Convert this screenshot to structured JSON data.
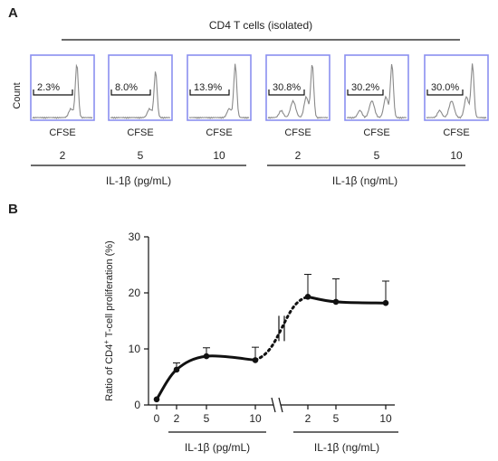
{
  "panel_a": {
    "letter": "A",
    "header": "CD4 T cells (isolated)",
    "y_axis_label": "Count",
    "x_axis_label": "CFSE",
    "histograms": [
      {
        "percent": "2.3%",
        "dose": "2"
      },
      {
        "percent": "8.0%",
        "dose": "5"
      },
      {
        "percent": "13.9%",
        "dose": "10"
      },
      {
        "percent": "30.8%",
        "dose": "2"
      },
      {
        "percent": "30.2%",
        "dose": "5"
      },
      {
        "percent": "30.0%",
        "dose": "10"
      }
    ],
    "group_labels": [
      "IL-1β (pg/mL)",
      "IL-1β (ng/mL)"
    ],
    "frame_color": "#8a8ff0"
  },
  "panel_b": {
    "letter": "B",
    "ylabel_prefix": "Ratio of CD4",
    "ylabel_sup": "+",
    "ylabel_suffix": " T-cell proliferation (%)",
    "group_labels": [
      "IL-1β (pg/mL)",
      "IL-1β (ng/mL)"
    ]
  },
  "chart_data": {
    "type": "line",
    "ylim": [
      0,
      30
    ],
    "yticks": [
      0,
      10,
      20,
      30
    ],
    "segments": [
      {
        "group": "IL-1β (pg/mL)",
        "x_labels": [
          "0",
          "2",
          "5",
          "10"
        ],
        "values": [
          1.0,
          6.3,
          8.7,
          8.0
        ],
        "errors": [
          0,
          1.2,
          1.5,
          2.3
        ]
      },
      {
        "group": "IL-1β (ng/mL)",
        "x_labels": [
          "2",
          "5",
          "10"
        ],
        "values": [
          19.3,
          18.4,
          18.2
        ],
        "errors": [
          4.0,
          4.1,
          3.9
        ]
      }
    ],
    "axis_break": true
  }
}
